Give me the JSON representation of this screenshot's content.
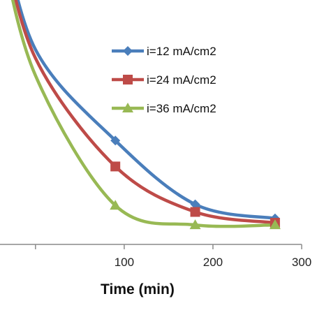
{
  "chart_data": {
    "type": "line",
    "xlabel": "Time (min)",
    "ylabel": "",
    "xlim": [
      -40,
      300
    ],
    "ylim": [
      0,
      1
    ],
    "x_ticks": [
      100,
      200,
      300
    ],
    "grid": false,
    "legend_position": "top-right",
    "series": [
      {
        "name": "i=12 mA/cm2",
        "color": "#4a7ebb",
        "marker": "diamond",
        "x": [
          0,
          90,
          180,
          270
        ],
        "y": [
          0.9,
          0.48,
          0.185,
          0.12
        ],
        "curve_lead": {
          "x": -40,
          "y": 1.5
        }
      },
      {
        "name": "i=24 mA/cm2",
        "color": "#be4b48",
        "marker": "square",
        "x": [
          0,
          90,
          180,
          270
        ],
        "y": [
          0.86,
          0.36,
          0.15,
          0.1
        ],
        "curve_lead": {
          "x": -40,
          "y": 1.45
        }
      },
      {
        "name": "i=36 mA/cm2",
        "color": "#98b954",
        "marker": "triangle",
        "x": [
          0,
          90,
          180,
          270
        ],
        "y": [
          0.78,
          0.18,
          0.09,
          0.09
        ],
        "curve_lead": {
          "x": -40,
          "y": 1.4
        }
      }
    ]
  }
}
